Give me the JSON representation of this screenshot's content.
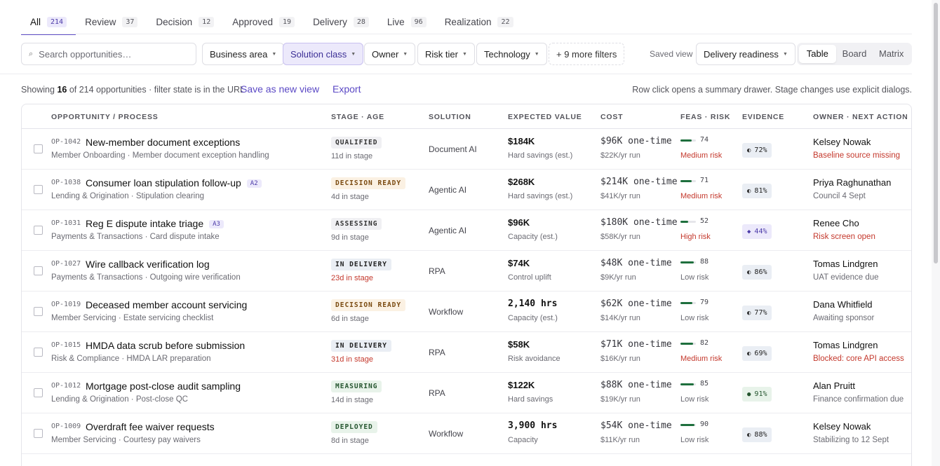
{
  "tabs": [
    {
      "label": "All",
      "count": "214",
      "active": true
    },
    {
      "label": "Review",
      "count": "37"
    },
    {
      "label": "Decision",
      "count": "12"
    },
    {
      "label": "Approved",
      "count": "19"
    },
    {
      "label": "Delivery",
      "count": "28"
    },
    {
      "label": "Live",
      "count": "96"
    },
    {
      "label": "Realization",
      "count": "22"
    }
  ],
  "search": {
    "placeholder": "Search opportunities…",
    "icon": "search-icon"
  },
  "filters": {
    "business_area": "Business area",
    "solution_class": "Solution class",
    "owner": "Owner",
    "risk_tier": "Risk tier",
    "technology": "Technology",
    "more": "+ 9 more filters"
  },
  "saved_view": {
    "label": "Saved view",
    "value": "Delivery readiness"
  },
  "view_modes": {
    "table": "Table",
    "board": "Board",
    "matrix": "Matrix",
    "active": "Table"
  },
  "summary": {
    "prefix": "Showing",
    "shown": "16",
    "rest": "of 214 opportunities · filter state is in the URL",
    "save_view": "Save as new view",
    "export": "Export",
    "hint": "Row click opens a summary drawer. Stage changes use explicit dialogs."
  },
  "columns": {
    "opportunity": "OPPORTUNITY / PROCESS",
    "stage": "STAGE · AGE",
    "solution": "SOLUTION",
    "value": "EXPECTED VALUE",
    "cost": "COST",
    "feas": "FEAS · RISK",
    "evidence": "EVIDENCE",
    "owner": "OWNER · NEXT ACTION"
  },
  "rows": [
    {
      "id": "OP-1042",
      "title": "New-member document exceptions",
      "tag": "",
      "sub": "Member Onboarding · Member document exception handling",
      "stage": "QUALIFIED",
      "age": "11d in stage",
      "solution": "Document AI",
      "value": "$184K",
      "value_sub": "Hard savings (est.)",
      "cost": "$96K one-time",
      "cost_sub": "$22K/yr run",
      "feas": "74",
      "feas_fraction": 0.74,
      "risk": "Medium risk",
      "evidence": "72%",
      "owner": "Kelsey Nowak",
      "action": "Baseline source missing"
    },
    {
      "id": "OP-1038",
      "title": "Consumer loan stipulation follow-up",
      "tag": "A2",
      "sub": "Lending & Origination · Stipulation clearing",
      "stage": "DECISION READY",
      "age": "4d in stage",
      "solution": "Agentic AI",
      "value": "$268K",
      "value_sub": "Hard savings (est.)",
      "cost": "$214K one-time",
      "cost_sub": "$41K/yr run",
      "feas": "71",
      "feas_fraction": 0.71,
      "risk": "Medium risk",
      "evidence": "81%",
      "owner": "Priya Raghunathan",
      "action": "Council 4 Sept"
    },
    {
      "id": "OP-1031",
      "title": "Reg E dispute intake triage",
      "tag": "A3",
      "sub": "Payments & Transactions · Card dispute intake",
      "stage": "ASSESSING",
      "age": "9d in stage",
      "solution": "Agentic AI",
      "value": "$96K",
      "value_sub": "Capacity (est.)",
      "cost": "$180K one-time",
      "cost_sub": "$58K/yr run",
      "feas": "52",
      "feas_fraction": 0.52,
      "risk": "High risk",
      "evidence": "44%",
      "owner": "Renee Cho",
      "action": "Risk screen open"
    },
    {
      "id": "OP-1027",
      "title": "Wire callback verification log",
      "tag": "",
      "sub": "Payments & Transactions · Outgoing wire verification",
      "stage": "IN DELIVERY",
      "age": "23d in stage",
      "solution": "RPA",
      "value": "$74K",
      "value_sub": "Control uplift",
      "cost": "$48K one-time",
      "cost_sub": "$9K/yr run",
      "feas": "88",
      "feas_fraction": 0.88,
      "risk": "Low risk",
      "evidence": "86%",
      "owner": "Tomas Lindgren",
      "action": "UAT evidence due"
    },
    {
      "id": "OP-1019",
      "title": "Deceased member account servicing",
      "tag": "",
      "sub": "Member Servicing · Estate servicing checklist",
      "stage": "DECISION READY",
      "age": "6d in stage",
      "solution": "Workflow",
      "value": "2,140 hrs",
      "value_sub": "Capacity (est.)",
      "cost": "$62K one-time",
      "cost_sub": "$14K/yr run",
      "feas": "79",
      "feas_fraction": 0.79,
      "risk": "Low risk",
      "evidence": "77%",
      "owner": "Dana Whitfield",
      "action": "Awaiting sponsor"
    },
    {
      "id": "OP-1015",
      "title": "HMDA data scrub before submission",
      "tag": "",
      "sub": "Risk & Compliance · HMDA LAR preparation",
      "stage": "IN DELIVERY",
      "age": "31d in stage",
      "solution": "RPA",
      "value": "$58K",
      "value_sub": "Risk avoidance",
      "cost": "$71K one-time",
      "cost_sub": "$16K/yr run",
      "feas": "82",
      "feas_fraction": 0.82,
      "risk": "Medium risk",
      "evidence": "69%",
      "owner": "Tomas Lindgren",
      "action": "Blocked: core API access"
    },
    {
      "id": "OP-1012",
      "title": "Mortgage post-close audit sampling",
      "tag": "",
      "sub": "Lending & Origination · Post-close QC",
      "stage": "MEASURING",
      "age": "14d in stage",
      "solution": "RPA",
      "value": "$122K",
      "value_sub": "Hard savings",
      "cost": "$88K one-time",
      "cost_sub": "$19K/yr run",
      "feas": "85",
      "feas_fraction": 0.85,
      "risk": "Low risk",
      "evidence": "91%",
      "owner": "Alan Pruitt",
      "action": "Finance confirmation due"
    },
    {
      "id": "OP-1009",
      "title": "Overdraft fee waiver requests",
      "tag": "",
      "sub": "Member Servicing · Courtesy pay waivers",
      "stage": "DEPLOYED",
      "age": "8d in stage",
      "solution": "Workflow",
      "value": "3,900 hrs",
      "value_sub": "Capacity",
      "cost": "$54K one-time",
      "cost_sub": "$11K/yr run",
      "feas": "90",
      "feas_fraction": 0.9,
      "risk": "Low risk",
      "evidence": "88%",
      "owner": "Kelsey Nowak",
      "action": "Stabilizing to 12 Sept"
    }
  ]
}
